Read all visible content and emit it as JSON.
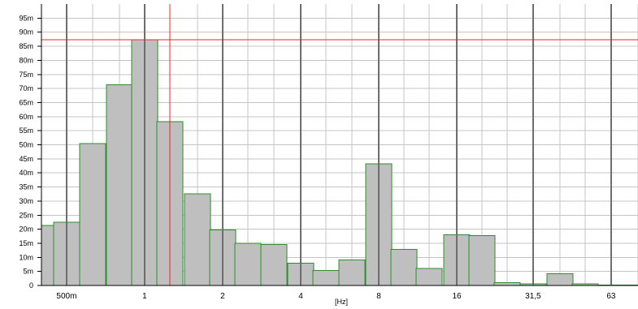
{
  "chart_data": {
    "type": "bar",
    "title": "",
    "xlabel": "[Hz]",
    "ylabel": "",
    "scale_x": "log2",
    "ylim": [
      0,
      0.1
    ],
    "y_ticks": [
      {
        "value": 0,
        "label": "0"
      },
      {
        "value": 0.005,
        "label": "5m"
      },
      {
        "value": 0.01,
        "label": "10m"
      },
      {
        "value": 0.015,
        "label": "15m"
      },
      {
        "value": 0.02,
        "label": "20m"
      },
      {
        "value": 0.025,
        "label": "25m"
      },
      {
        "value": 0.03,
        "label": "30m"
      },
      {
        "value": 0.035,
        "label": "35m"
      },
      {
        "value": 0.04,
        "label": "40m"
      },
      {
        "value": 0.045,
        "label": "45m"
      },
      {
        "value": 0.05,
        "label": "50m"
      },
      {
        "value": 0.055,
        "label": "55m"
      },
      {
        "value": 0.06,
        "label": "60m"
      },
      {
        "value": 0.065,
        "label": "65m"
      },
      {
        "value": 0.07,
        "label": "70m"
      },
      {
        "value": 0.075,
        "label": "75m"
      },
      {
        "value": 0.08,
        "label": "80m"
      },
      {
        "value": 0.085,
        "label": "85m"
      },
      {
        "value": 0.09,
        "label": "90m"
      },
      {
        "value": 0.095,
        "label": "95m"
      }
    ],
    "x_ticks": [
      {
        "value": 0.5,
        "label": "500m"
      },
      {
        "value": 1,
        "label": "1"
      },
      {
        "value": 2,
        "label": "2"
      },
      {
        "value": 4,
        "label": "4"
      },
      {
        "value": 8,
        "label": "8"
      },
      {
        "value": 16,
        "label": "16"
      },
      {
        "value": 31.5,
        "label": "31,5"
      },
      {
        "value": 63,
        "label": "63"
      }
    ],
    "x_range_hz": [
      0.4,
      80
    ],
    "categories_hz": [
      0.4,
      0.5,
      0.63,
      0.8,
      1,
      1.25,
      1.6,
      2,
      2.5,
      3.15,
      4,
      5,
      6.3,
      8,
      10,
      12.5,
      16,
      20,
      25,
      31.5,
      40,
      50,
      63,
      80
    ],
    "values": [
      0.0213,
      0.0225,
      0.0505,
      0.0713,
      0.0873,
      0.0582,
      0.0326,
      0.0197,
      0.015,
      0.0145,
      0.0079,
      0.0054,
      0.0091,
      0.0432,
      0.0128,
      0.006,
      0.018,
      0.0177,
      0.001,
      0.0006,
      0.0042,
      0.0006,
      0.0002,
      0.0001
    ],
    "cursor_x_hz": 1.25,
    "cursor_y": 0.0873,
    "grid": true,
    "colors": {
      "bar_fill": "#bfbfbf",
      "bar_edge": "#2e8b2e",
      "major_grid": "#6e6e6e",
      "minor_grid": "#c4c4c4",
      "cursor": "#ff2020"
    }
  }
}
